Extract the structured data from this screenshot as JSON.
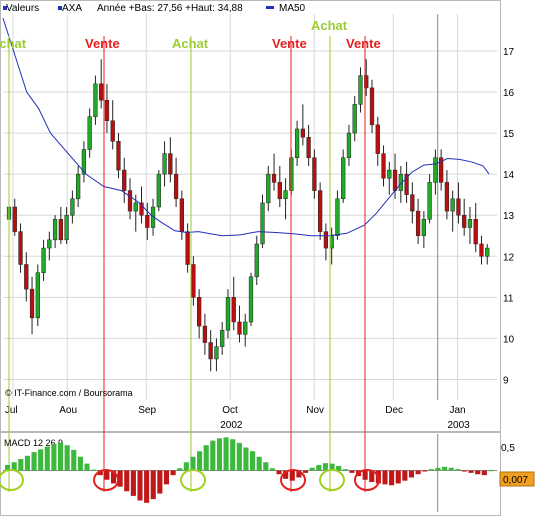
{
  "header": {
    "label_valeurs": "Valeurs",
    "symbol": "AXA",
    "range_text": "Année +Bas: 27,56 +Haut: 34,88",
    "ma_label": "MA50"
  },
  "copyright": "© IT-Finance.com / Boursorama",
  "colors": {
    "up": "#22a82a",
    "down": "#b81010",
    "ma": "#2030b8",
    "achat": "#9acd32",
    "vente": "#e82020",
    "circle_achat": "#a0d020",
    "circle_vente": "#e02020",
    "hist_up": "#3cb83c",
    "hist_down": "#c01818",
    "grid": "#d8d8d8",
    "last_value_box": "#f0a020"
  },
  "signals": [
    {
      "type": "achat",
      "label": "Achat",
      "date": "Jul 2002"
    },
    {
      "type": "vente",
      "label": "Vente",
      "date": "Aug 2002"
    },
    {
      "type": "achat",
      "label": "Achat",
      "date": "Sep 2002"
    },
    {
      "type": "vente",
      "label": "Vente",
      "date": "Oct 2002"
    },
    {
      "type": "achat",
      "label": "Achat",
      "date": "Nov 2002"
    },
    {
      "type": "vente",
      "label": "Vente",
      "date": "Nov 2002"
    }
  ],
  "macd": {
    "label": "MACD 12 26 9",
    "y_tick": "0,5",
    "last_value": "0,007"
  },
  "chart_data": [
    {
      "type": "candlestick",
      "title": "",
      "x_tick_labels": [
        "Jul",
        "Aou",
        "Sep",
        "Oct",
        "Nov",
        "Dec",
        "Jan"
      ],
      "year_labels": [
        "2002",
        "2003"
      ],
      "y_ticks": [
        9,
        10,
        11,
        12,
        13,
        14,
        15,
        16,
        17
      ],
      "ylim": [
        8.5,
        17.9
      ],
      "grid": true,
      "series": [
        {
          "name": "MA50",
          "type": "line",
          "points": [
            [
              0,
              17.8
            ],
            [
              10,
              16.9
            ],
            [
              20,
              16
            ],
            [
              30,
              15.6
            ],
            [
              40,
              15
            ],
            [
              55,
              14.5
            ],
            [
              70,
              14
            ],
            [
              85,
              13.7
            ],
            [
              100,
              13.6
            ],
            [
              115,
              13.3
            ],
            [
              125,
              13
            ],
            [
              135,
              12.8
            ],
            [
              145,
              12.62
            ],
            [
              155,
              12.58
            ],
            [
              165,
              12.6
            ],
            [
              175,
              12.55
            ],
            [
              185,
              12.5
            ],
            [
              200,
              12.52
            ],
            [
              215,
              12.6
            ],
            [
              230,
              12.58
            ],
            [
              245,
              12.55
            ],
            [
              260,
              12.5
            ],
            [
              275,
              12.5
            ],
            [
              290,
              12.56
            ],
            [
              305,
              12.76
            ],
            [
              315,
              13.05
            ],
            [
              325,
              13.4
            ],
            [
              335,
              13.75
            ],
            [
              345,
              14.05
            ],
            [
              355,
              14.22
            ],
            [
              365,
              14.25
            ],
            [
              375,
              14.38
            ],
            [
              385,
              14.36
            ],
            [
              395,
              14.3
            ],
            [
              405,
              14.2
            ],
            [
              410,
              14
            ]
          ]
        },
        {
          "name": "",
          "type": "ohlc",
          "values": [
            [
              12.9,
              13.6,
              12.3,
              13.2
            ],
            [
              13.2,
              13.4,
              12.5,
              12.6
            ],
            [
              12.6,
              12.8,
              11.6,
              11.8
            ],
            [
              11.8,
              12.1,
              10.9,
              11.2
            ],
            [
              11.2,
              11.5,
              10.1,
              10.5
            ],
            [
              10.5,
              11.8,
              10.3,
              11.6
            ],
            [
              11.6,
              12.4,
              11.4,
              12.2
            ],
            [
              12.2,
              12.6,
              11.9,
              12.4
            ],
            [
              12.4,
              13,
              12.2,
              12.9
            ],
            [
              12.9,
              13.2,
              12.3,
              12.4
            ],
            [
              12.4,
              13.2,
              12.3,
              13.0
            ],
            [
              13,
              13.6,
              12.8,
              13.4
            ],
            [
              13.4,
              14.2,
              13.2,
              14.0
            ],
            [
              14,
              14.8,
              13.8,
              14.6
            ],
            [
              14.6,
              15.6,
              14.4,
              15.4
            ],
            [
              15.4,
              16.4,
              15.2,
              16.2
            ],
            [
              16.2,
              16.8,
              15.6,
              15.8
            ],
            [
              15.8,
              16.2,
              15,
              15.3
            ],
            [
              15.3,
              15.8,
              14.6,
              14.8
            ],
            [
              14.8,
              15,
              13.9,
              14.1
            ],
            [
              14.1,
              14.4,
              13.3,
              13.6
            ],
            [
              13.6,
              13.9,
              12.9,
              13.1
            ],
            [
              13.1,
              13.5,
              12.6,
              13.3
            ],
            [
              13.3,
              13.7,
              12.8,
              13.0
            ],
            [
              13,
              13.3,
              12.4,
              12.7
            ],
            [
              12.7,
              13.4,
              12.5,
              13.2
            ],
            [
              13.2,
              14.1,
              13.1,
              14.0
            ],
            [
              14,
              14.8,
              13.7,
              14.5
            ],
            [
              14.5,
              14.9,
              13.8,
              14.0
            ],
            [
              14,
              14.4,
              13.2,
              13.4
            ],
            [
              13.4,
              13.6,
              12.4,
              12.6
            ],
            [
              12.6,
              12.8,
              11.6,
              11.8
            ],
            [
              11.8,
              12,
              10.8,
              11.0
            ],
            [
              11,
              11.2,
              10,
              10.3
            ],
            [
              10.3,
              10.6,
              9.6,
              9.9
            ],
            [
              9.9,
              10.2,
              9.2,
              9.5
            ],
            [
              9.5,
              10,
              9.2,
              9.8
            ],
            [
              9.8,
              10.4,
              9.6,
              10.2
            ],
            [
              10.2,
              11.2,
              10,
              11
            ],
            [
              11,
              11.5,
              10.2,
              10.4
            ],
            [
              10.4,
              10.8,
              9.9,
              10.1
            ],
            [
              10.1,
              10.6,
              9.8,
              10.4
            ],
            [
              10.4,
              11.6,
              10.3,
              11.5
            ],
            [
              11.5,
              12.5,
              11.3,
              12.3
            ],
            [
              12.3,
              13.5,
              12.2,
              13.3
            ],
            [
              13.3,
              14.2,
              13.1,
              14.0
            ],
            [
              14,
              14.5,
              13.6,
              13.8
            ],
            [
              13.8,
              14.2,
              13.2,
              13.4
            ],
            [
              13.4,
              13.9,
              12.9,
              13.6
            ],
            [
              13.6,
              14.6,
              13.5,
              14.4
            ],
            [
              14.4,
              15.3,
              14.2,
              15.1
            ],
            [
              15.1,
              15.7,
              14.7,
              14.9
            ],
            [
              14.9,
              15.2,
              14.2,
              14.4
            ],
            [
              14.4,
              14.6,
              13.4,
              13.6
            ],
            [
              13.6,
              13.8,
              12.4,
              12.6
            ],
            [
              12.6,
              12.8,
              11.9,
              12.2
            ],
            [
              12.2,
              12.7,
              11.8,
              12.5
            ],
            [
              12.5,
              13.6,
              12.4,
              13.4
            ],
            [
              13.4,
              14.6,
              13.3,
              14.4
            ],
            [
              14.4,
              15.2,
              14.2,
              15
            ],
            [
              15,
              15.9,
              14.8,
              15.7
            ],
            [
              15.7,
              16.6,
              15.5,
              16.4
            ],
            [
              16.4,
              16.8,
              15.9,
              16.1
            ],
            [
              16.1,
              16.3,
              15,
              15.2
            ],
            [
              15.2,
              15.4,
              14.2,
              14.5
            ],
            [
              14.5,
              14.7,
              13.7,
              13.9
            ],
            [
              13.9,
              14.3,
              13.5,
              14.1
            ],
            [
              14.1,
              14.5,
              13.4,
              13.6
            ],
            [
              13.6,
              14.2,
              13.3,
              14
            ],
            [
              14,
              14.3,
              13.3,
              13.5
            ],
            [
              13.5,
              13.8,
              12.8,
              13.1
            ],
            [
              13.1,
              13.4,
              12.3,
              12.5
            ],
            [
              12.5,
              13.1,
              12.2,
              12.9
            ],
            [
              12.9,
              14,
              12.8,
              13.8
            ],
            [
              13.8,
              14.6,
              13.5,
              14.4
            ],
            [
              14.4,
              14.6,
              13.6,
              13.8
            ],
            [
              13.8,
              14.1,
              12.9,
              13.1
            ],
            [
              13.1,
              13.6,
              12.6,
              13.4
            ],
            [
              13.4,
              13.8,
              12.8,
              13
            ],
            [
              13,
              13.4,
              12.5,
              12.7
            ],
            [
              12.7,
              13.2,
              12.3,
              12.9
            ],
            [
              12.9,
              13.3,
              12.1,
              12.3
            ],
            [
              12.3,
              12.5,
              11.8,
              12
            ],
            [
              12,
              12.3,
              11.8,
              12.2
            ]
          ]
        }
      ]
    },
    {
      "type": "bar",
      "title": "MACD 12 26 9",
      "y_ticks": [
        0.5
      ],
      "ylim": [
        -0.9,
        0.75
      ],
      "values": [
        0.12,
        0.18,
        0.25,
        0.32,
        0.4,
        0.46,
        0.52,
        0.58,
        0.6,
        0.55,
        0.45,
        0.3,
        0.15,
        0.02,
        -0.1,
        -0.2,
        -0.28,
        -0.35,
        -0.45,
        -0.55,
        -0.65,
        -0.7,
        -0.62,
        -0.5,
        -0.3,
        -0.1,
        0.05,
        0.18,
        0.3,
        0.42,
        0.55,
        0.65,
        0.7,
        0.72,
        0.68,
        0.6,
        0.5,
        0.42,
        0.3,
        0.18,
        0.05,
        -0.08,
        -0.18,
        -0.22,
        -0.15,
        -0.05,
        0.06,
        0.12,
        0.16,
        0.15,
        0.1,
        0.03,
        -0.05,
        -0.12,
        -0.2,
        -0.25,
        -0.28,
        -0.3,
        -0.32,
        -0.28,
        -0.22,
        -0.15,
        -0.08,
        -0.02,
        0.03,
        0.06,
        0.08,
        0.06,
        0.03,
        -0.02,
        -0.05,
        -0.08,
        -0.1,
        0.007
      ]
    }
  ]
}
